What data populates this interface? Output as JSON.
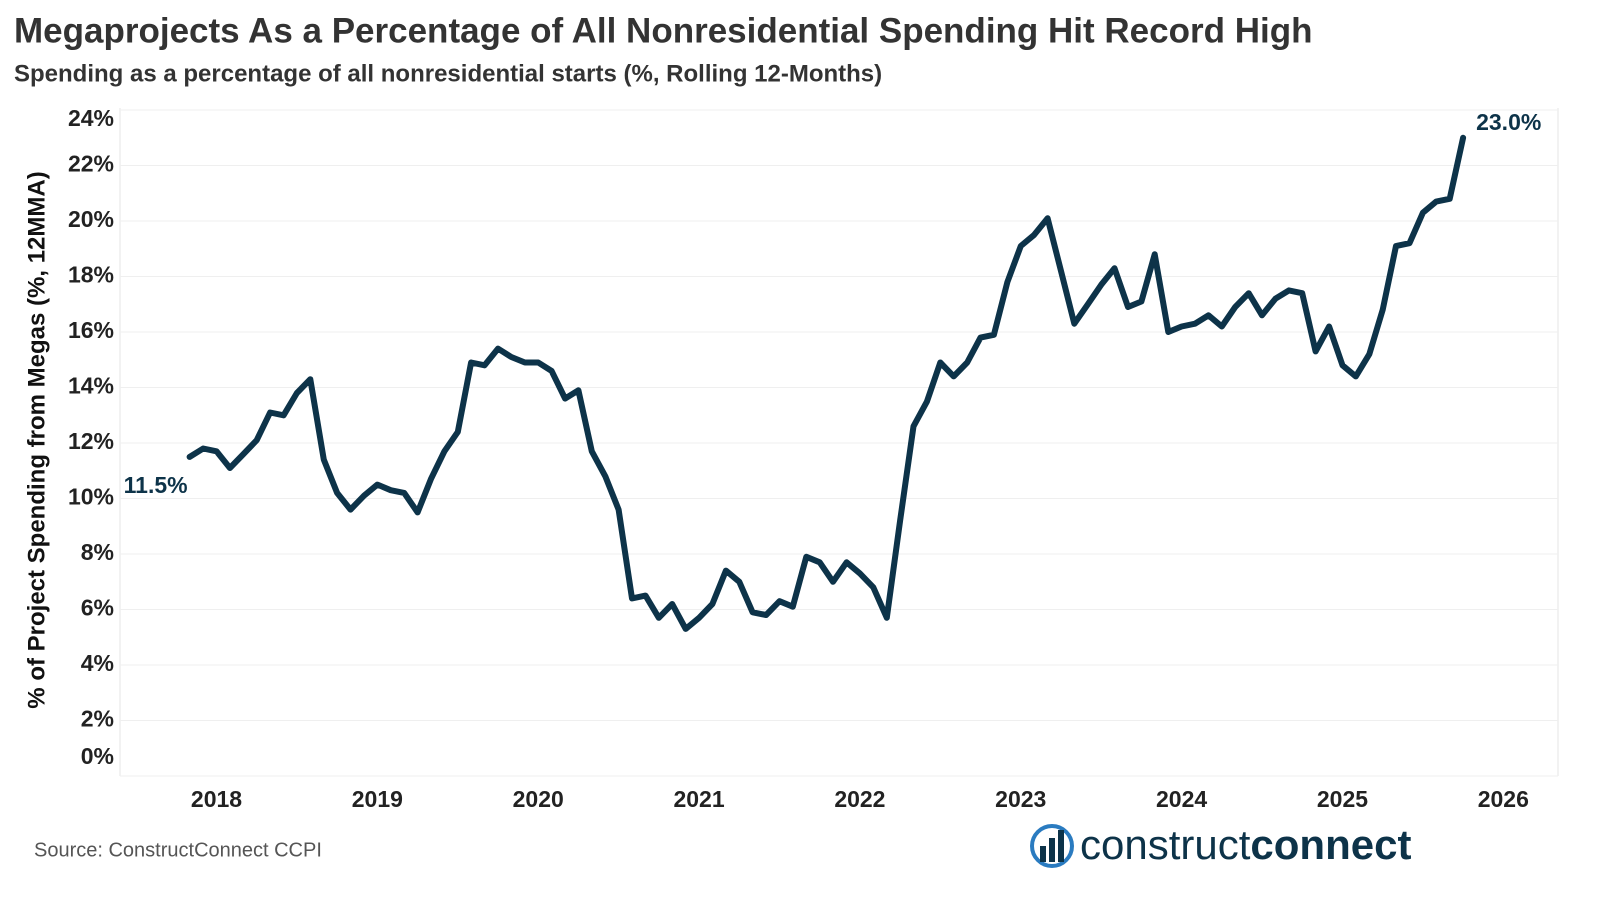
{
  "chart_data": {
    "type": "line",
    "title": "Megaprojects As a Percentage of All Nonresidential Spending Hit Record High",
    "subtitle": "Spending as a percentage of all nonresidential starts (%, Rolling 12-Months)",
    "y_label": "% of Project Spending from Megas (%, 12MMA)",
    "color": "#0d3349",
    "grid": true,
    "xlim": [
      2017.4,
      2026.34
    ],
    "xticks": [
      2018,
      2019,
      2020,
      2021,
      2022,
      2023,
      2024,
      2025,
      2026
    ],
    "ylim": [
      0,
      24
    ],
    "yticks": [
      {
        "value": 0,
        "label": "0%"
      },
      {
        "value": 2,
        "label": "2%"
      },
      {
        "value": 4,
        "label": "4%"
      },
      {
        "value": 6,
        "label": "6%"
      },
      {
        "value": 8,
        "label": "8%"
      },
      {
        "value": 10,
        "label": "10%"
      },
      {
        "value": 12,
        "label": "12%"
      },
      {
        "value": 14,
        "label": "14%"
      },
      {
        "value": 16,
        "label": "16%"
      },
      {
        "value": 18,
        "label": "18%"
      },
      {
        "value": 20,
        "label": "20%"
      },
      {
        "value": 22,
        "label": "22%"
      },
      {
        "value": 24,
        "label": "24%"
      }
    ],
    "x": [
      2017.833,
      2017.917,
      2018,
      2018.083,
      2018.167,
      2018.25,
      2018.333,
      2018.417,
      2018.5,
      2018.583,
      2018.667,
      2018.75,
      2018.833,
      2018.917,
      2019,
      2019.083,
      2019.167,
      2019.25,
      2019.333,
      2019.417,
      2019.5,
      2019.583,
      2019.667,
      2019.75,
      2019.833,
      2019.917,
      2020,
      2020.083,
      2020.167,
      2020.25,
      2020.333,
      2020.417,
      2020.5,
      2020.583,
      2020.667,
      2020.75,
      2020.833,
      2020.917,
      2021,
      2021.083,
      2021.167,
      2021.25,
      2021.333,
      2021.417,
      2021.5,
      2021.583,
      2021.667,
      2021.75,
      2021.833,
      2021.917,
      2022,
      2022.083,
      2022.167,
      2022.25,
      2022.333,
      2022.417,
      2022.5,
      2022.583,
      2022.667,
      2022.75,
      2022.833,
      2022.917,
      2023,
      2023.083,
      2023.167,
      2023.25,
      2023.333,
      2023.417,
      2023.5,
      2023.583,
      2023.667,
      2023.75,
      2023.833,
      2023.917,
      2024,
      2024.083,
      2024.167,
      2024.25,
      2024.333,
      2024.417,
      2024.5,
      2024.583,
      2024.667,
      2024.75,
      2024.833,
      2024.917,
      2025,
      2025.083,
      2025.167,
      2025.25,
      2025.333,
      2025.417,
      2025.5,
      2025.583,
      2025.667,
      2025.75
    ],
    "values": [
      11.5,
      11.8,
      11.7,
      11.1,
      11.6,
      12.1,
      13.1,
      13.0,
      13.8,
      14.3,
      11.4,
      10.2,
      9.6,
      10.1,
      10.5,
      10.3,
      10.2,
      9.5,
      10.7,
      11.7,
      12.4,
      14.9,
      14.8,
      15.4,
      15.1,
      14.9,
      14.9,
      14.6,
      13.6,
      13.9,
      11.7,
      10.8,
      9.6,
      6.4,
      6.5,
      5.7,
      6.2,
      5.3,
      5.7,
      6.2,
      7.4,
      7.0,
      5.9,
      5.8,
      6.3,
      6.1,
      7.9,
      7.7,
      7.0,
      7.7,
      7.3,
      6.8,
      5.7,
      9.2,
      12.6,
      13.5,
      14.9,
      14.4,
      14.9,
      15.8,
      15.9,
      17.8,
      19.1,
      19.5,
      20.1,
      18.2,
      16.3,
      17.0,
      17.7,
      18.3,
      16.9,
      17.1,
      18.8,
      16.0,
      16.2,
      16.3,
      16.6,
      16.2,
      16.9,
      17.4,
      16.6,
      17.2,
      17.5,
      17.4,
      15.3,
      16.2,
      14.8,
      14.4,
      15.2,
      16.8,
      19.1,
      19.2,
      20.3,
      20.7,
      20.8,
      23.0
    ],
    "value_labels": [
      "11.5%",
      null,
      null,
      null,
      null,
      null,
      null,
      null,
      null,
      null,
      null,
      null,
      null,
      null,
      null,
      null,
      null,
      null,
      null,
      null,
      null,
      null,
      null,
      null,
      null,
      null,
      null,
      null,
      null,
      null,
      null,
      null,
      null,
      null,
      null,
      null,
      null,
      null,
      null,
      null,
      null,
      null,
      null,
      null,
      null,
      null,
      null,
      null,
      null,
      null,
      null,
      null,
      null,
      null,
      null,
      null,
      null,
      null,
      null,
      null,
      null,
      null,
      null,
      null,
      null,
      null,
      null,
      null,
      null,
      null,
      null,
      null,
      null,
      null,
      null,
      null,
      null,
      null,
      null,
      null,
      null,
      null,
      null,
      null,
      null,
      null,
      null,
      null,
      null,
      null,
      null,
      null,
      null,
      null,
      null,
      "23.0%"
    ],
    "source": "Source: ConstructConnect CCPI",
    "logo": {
      "light": "construct",
      "bold": "connect"
    }
  }
}
